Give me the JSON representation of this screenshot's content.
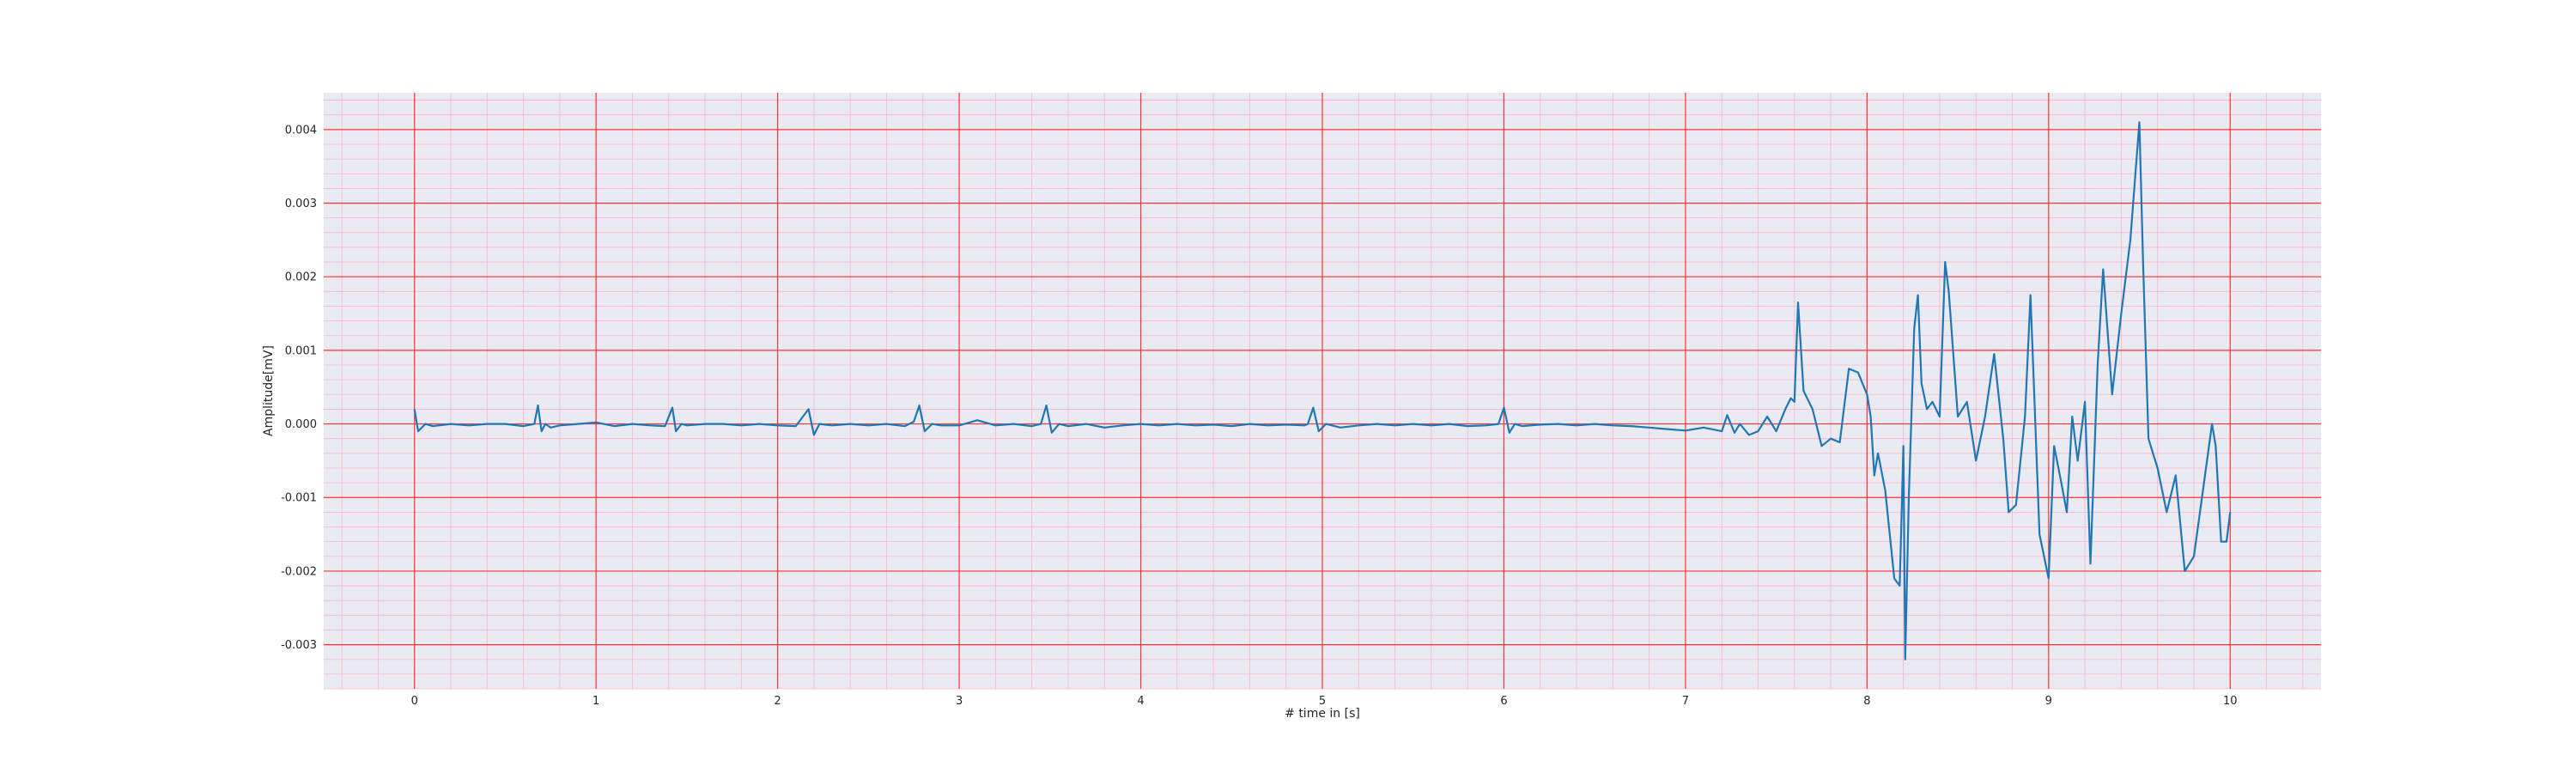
{
  "chart_data": {
    "type": "line",
    "title": "",
    "xlabel": "# time in [s]",
    "ylabel": "Amplitude[mV]",
    "xlim": [
      -0.5,
      10.5
    ],
    "ylim": [
      -0.0036,
      0.0045
    ],
    "x_ticks": [
      0,
      1,
      2,
      3,
      4,
      5,
      6,
      7,
      8,
      9,
      10
    ],
    "x_tick_labels": [
      "0",
      "1",
      "2",
      "3",
      "4",
      "5",
      "6",
      "7",
      "8",
      "9",
      "10"
    ],
    "y_ticks": [
      -0.003,
      -0.002,
      -0.001,
      0.0,
      0.001,
      0.002,
      0.003,
      0.004
    ],
    "y_tick_labels": [
      "-0.003",
      "-0.002",
      "-0.001",
      "0.000",
      "0.001",
      "0.002",
      "0.003",
      "0.004"
    ],
    "grid": true,
    "minor_grid": true,
    "legend": "none",
    "colors": {
      "background": "#eaeaf2",
      "major_grid": "#ff3333",
      "minor_grid": "#ffb3c6",
      "line": "#1f77b4"
    },
    "series": [
      {
        "x": [
          0,
          0.02,
          0.06,
          0.1,
          0.2,
          0.3,
          0.4,
          0.5,
          0.6,
          0.66,
          0.68,
          0.7,
          0.72,
          0.75,
          0.8,
          0.9,
          1.0,
          1.1,
          1.2,
          1.3,
          1.38,
          1.42,
          1.44,
          1.47,
          1.5,
          1.6,
          1.7,
          1.8,
          1.9,
          2.0,
          2.1,
          2.17,
          2.2,
          2.23,
          2.3,
          2.4,
          2.5,
          2.6,
          2.7,
          2.75,
          2.78,
          2.81,
          2.85,
          2.9,
          3.0,
          3.1,
          3.2,
          3.3,
          3.4,
          3.45,
          3.48,
          3.51,
          3.55,
          3.6,
          3.7,
          3.8,
          3.9,
          4.0,
          4.1,
          4.2,
          4.3,
          4.4,
          4.5,
          4.6,
          4.7,
          4.8,
          4.9,
          4.92,
          4.95,
          4.98,
          5.02,
          5.1,
          5.2,
          5.3,
          5.4,
          5.5,
          5.6,
          5.7,
          5.8,
          5.9,
          5.97,
          6.0,
          6.03,
          6.06,
          6.1,
          6.2,
          6.3,
          6.4,
          6.5,
          6.6,
          6.7,
          6.8,
          6.9,
          7.0,
          7.1,
          7.2,
          7.23,
          7.27,
          7.3,
          7.35,
          7.4,
          7.45,
          7.5,
          7.55,
          7.58,
          7.6,
          7.62,
          7.65,
          7.7,
          7.75,
          7.8,
          7.85,
          7.9,
          7.95,
          8.0,
          8.02,
          8.04,
          8.06,
          8.1,
          8.15,
          8.18,
          8.2,
          8.21,
          8.23,
          8.26,
          8.28,
          8.3,
          8.33,
          8.36,
          8.4,
          8.43,
          8.45,
          8.5,
          8.55,
          8.6,
          8.65,
          8.7,
          8.75,
          8.78,
          8.82,
          8.87,
          8.9,
          8.95,
          9.0,
          9.03,
          9.07,
          9.1,
          9.13,
          9.16,
          9.2,
          9.23,
          9.27,
          9.3,
          9.35,
          9.4,
          9.45,
          9.5,
          9.52,
          9.55,
          9.6,
          9.65,
          9.7,
          9.75,
          9.8,
          9.85,
          9.9,
          9.92,
          9.95,
          9.98,
          10.0
        ],
        "y": [
          0.0002,
          -0.0001,
          0.0,
          -3e-05,
          0.0,
          -2e-05,
          0.0,
          0.0,
          -3e-05,
          0.0,
          0.00025,
          -0.0001,
          0.0,
          -5e-05,
          -2e-05,
          0.0,
          2e-05,
          -3e-05,
          0.0,
          -2e-05,
          -3e-05,
          0.00022,
          -0.0001,
          0.0,
          -2e-05,
          0.0,
          0.0,
          -2e-05,
          0.0,
          -2e-05,
          -3e-05,
          0.0002,
          -0.00015,
          0.0,
          -2e-05,
          0.0,
          -2e-05,
          0.0,
          -3e-05,
          3e-05,
          0.00025,
          -0.0001,
          0.0,
          -2e-05,
          -2e-05,
          5e-05,
          -2e-05,
          0.0,
          -3e-05,
          0.0,
          0.00025,
          -0.00012,
          0.0,
          -3e-05,
          0.0,
          -5e-05,
          -2e-05,
          0.0,
          -2e-05,
          0.0,
          -2e-05,
          -1e-05,
          -3e-05,
          0.0,
          -2e-05,
          -1e-05,
          -2e-05,
          0.0,
          0.00022,
          -0.0001,
          0.0,
          -5e-05,
          -2e-05,
          0.0,
          -2e-05,
          0.0,
          -2e-05,
          0.0,
          -3e-05,
          -2e-05,
          0.0,
          0.00022,
          -0.00012,
          0.0,
          -3e-05,
          -1e-05,
          0.0,
          -2e-05,
          0.0,
          -2e-05,
          -3e-05,
          -5e-05,
          -7e-05,
          -9e-05,
          -5e-05,
          -0.0001,
          0.00012,
          -0.00012,
          0.0,
          -0.00015,
          -0.0001,
          0.0001,
          -0.0001,
          0.0002,
          0.00035,
          0.0003,
          0.00165,
          0.00045,
          0.0002,
          -0.0003,
          -0.0002,
          -0.00025,
          0.00075,
          0.0007,
          0.0004,
          0.0001,
          -0.0007,
          -0.0004,
          -0.0009,
          -0.0021,
          -0.0022,
          -0.0003,
          -0.0032,
          -0.001,
          0.0013,
          0.00175,
          0.00055,
          0.0002,
          0.0003,
          0.0001,
          0.0022,
          0.0018,
          0.0001,
          0.0003,
          -0.0005,
          0.0001,
          0.00095,
          -0.0002,
          -0.0012,
          -0.0011,
          0.0001,
          0.00175,
          -0.0015,
          -0.0021,
          -0.0003,
          -0.0008,
          -0.0012,
          0.0001,
          -0.0005,
          0.0003,
          -0.0019,
          0.0008,
          0.0021,
          0.0004,
          0.0015,
          0.0025,
          0.0041,
          0.0022,
          -0.0002,
          -0.0006,
          -0.0012,
          -0.0007,
          -0.002,
          -0.0018,
          -0.0009,
          0.0,
          -0.0003,
          -0.0016,
          -0.0016,
          -0.0012
        ]
      }
    ]
  }
}
